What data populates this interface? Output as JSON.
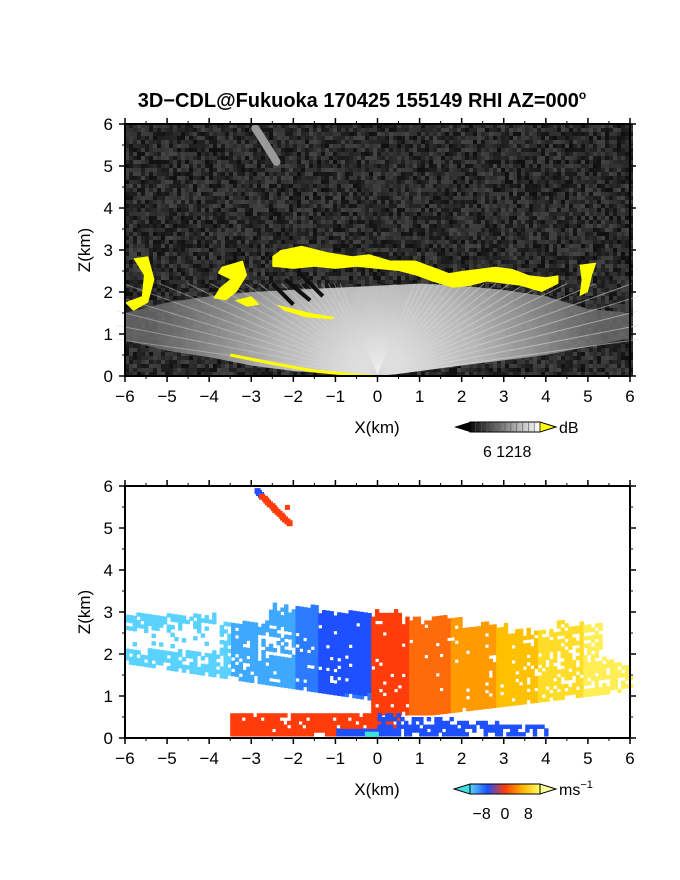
{
  "chart_data": [
    {
      "type": "heatmap",
      "title": "3D−CDL@Fukuoka 170425 155149 RHI AZ=000°",
      "title_main": "3D−CDL@Fukuoka 170425 155149 RHI AZ=000",
      "title_deg": "o",
      "xlabel": "X(km)",
      "ylabel": "Z(km)",
      "xlim": [
        -6,
        6
      ],
      "ylim": [
        0,
        6
      ],
      "xticks": [
        "−6",
        "−5",
        "−4",
        "−3",
        "−2",
        "−1",
        "0",
        "1",
        "2",
        "3",
        "4",
        "5",
        "6"
      ],
      "yticks": [
        "0",
        "1",
        "2",
        "3",
        "4",
        "5",
        "6"
      ],
      "colorbar": {
        "label": "dB",
        "ticks": [
          "6",
          "12",
          "18"
        ],
        "tick_values": [
          6,
          12,
          18
        ],
        "range": [
          0,
          24
        ],
        "colormap": "grayscale with yellow above 18",
        "colors": [
          "#0a0a0a",
          "#ffffff",
          "#ffff00"
        ]
      },
      "features": {
        "cloud_base_km": [
          2.0,
          3.0
        ],
        "cloud_extent_km": [
          -6,
          5.3
        ],
        "over_color": "#ffff00"
      }
    },
    {
      "type": "heatmap",
      "xlabel": "X(km)",
      "ylabel": "Z(km)",
      "xlim": [
        -6,
        6
      ],
      "ylim": [
        0,
        6
      ],
      "xticks": [
        "−6",
        "−5",
        "−4",
        "−3",
        "−2",
        "−1",
        "0",
        "1",
        "2",
        "3",
        "4",
        "5",
        "6"
      ],
      "yticks": [
        "0",
        "1",
        "2",
        "3",
        "4",
        "5",
        "6"
      ],
      "colorbar": {
        "label_base": "ms",
        "label_exp": "−1",
        "ticks": [
          "−8",
          "0",
          "8"
        ],
        "tick_values": [
          -8,
          0,
          8
        ],
        "range": [
          -12,
          12
        ],
        "colormap": "cyan-blue-red-yellow",
        "colors": [
          "#5ad2ff",
          "#1e50ff",
          "#ff3c0a",
          "#ffb400",
          "#ffff64"
        ]
      },
      "features": {
        "negative_velocity_side_km": [
          -6,
          -0.2
        ],
        "positive_velocity_side_km": [
          -0.2,
          6
        ],
        "echo_top_km": 3.0
      }
    }
  ]
}
